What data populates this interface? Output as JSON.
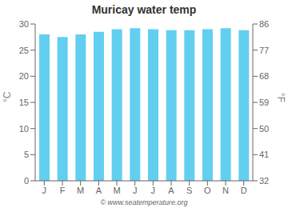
{
  "chart_data": {
    "type": "bar",
    "title": "Muricay water temp",
    "categories": [
      "J",
      "F",
      "M",
      "A",
      "M",
      "J",
      "J",
      "A",
      "S",
      "O",
      "N",
      "D"
    ],
    "values": [
      28.0,
      27.5,
      28.0,
      28.5,
      29.0,
      29.2,
      29.0,
      28.8,
      28.8,
      29.0,
      29.2,
      28.8
    ],
    "color": "#63cff0",
    "ylabel": "°C",
    "y2label": "°F",
    "ylim": [
      0,
      30
    ],
    "yticks": [
      0,
      5,
      10,
      15,
      20,
      25,
      30
    ],
    "y2lim": [
      32,
      86
    ],
    "y2ticks": [
      32,
      41,
      50,
      59,
      68,
      77,
      86
    ],
    "grid": false,
    "annotations": [
      "© www.seatemperature.org"
    ]
  }
}
